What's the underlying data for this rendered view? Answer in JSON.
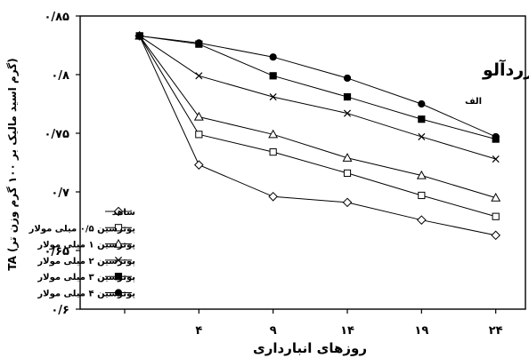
{
  "chart_data": {
    "type": "line",
    "title": "زردآلو",
    "panel_label": "الف",
    "xlabel": "روزهای انبارداری",
    "ylabel": "TA (گرم اسید مالیک بر ۱۰۰ گرم وزن تر)",
    "x": [
      0,
      4,
      9,
      14,
      19,
      24
    ],
    "x_tick_labels": [
      "۴",
      "۹",
      "۱۴",
      "۱۹",
      "۲۴"
    ],
    "xlim": [
      -4,
      26
    ],
    "ylim": [
      0.6,
      0.85
    ],
    "y_ticks": [
      0.6,
      0.65,
      0.7,
      0.75,
      0.8,
      0.85
    ],
    "y_tick_labels": [
      "۰/۶",
      "۰/۶۵",
      "۰/۷",
      "۰/۷۵",
      "۰/۸",
      "۰/۸۵"
    ],
    "grid": false,
    "legend_position": "bottom-left",
    "series": [
      {
        "name": "شاهد",
        "marker": "diamond-open",
        "values": [
          0.833,
          0.723,
          0.696,
          0.691,
          0.676,
          0.663
        ]
      },
      {
        "name": "پوترسین ۰/۵ میلی مولار",
        "marker": "square-open",
        "values": [
          0.833,
          0.749,
          0.734,
          0.716,
          0.697,
          0.679
        ]
      },
      {
        "name": "پوترسین ۱ میلی مولار",
        "marker": "triangle-open",
        "values": [
          0.833,
          0.764,
          0.749,
          0.729,
          0.714,
          0.695
        ]
      },
      {
        "name": "پوترسین ۲ میلی مولار",
        "marker": "cross",
        "values": [
          0.833,
          0.799,
          0.781,
          0.767,
          0.747,
          0.728
        ]
      },
      {
        "name": "پوترسین ۳ میلی مولار",
        "marker": "square-filled",
        "values": [
          0.833,
          0.826,
          0.799,
          0.781,
          0.762,
          0.745
        ]
      },
      {
        "name": "پوترسین ۴ میلی مولار",
        "marker": "circle-filled",
        "values": [
          0.833,
          0.827,
          0.815,
          0.797,
          0.775,
          0.747
        ]
      }
    ]
  }
}
